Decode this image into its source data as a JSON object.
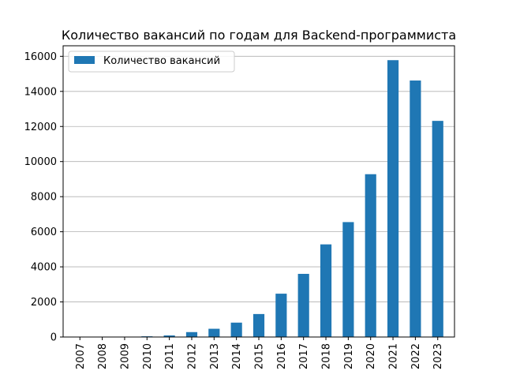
{
  "chart_data": {
    "type": "bar",
    "title": "Количество вакансий по годам для Backend-программиста",
    "xlabel": "",
    "ylabel": "",
    "categories": [
      "2007",
      "2008",
      "2009",
      "2010",
      "2011",
      "2012",
      "2013",
      "2014",
      "2015",
      "2016",
      "2017",
      "2018",
      "2019",
      "2020",
      "2021",
      "2022",
      "2023"
    ],
    "series": [
      {
        "name": "Количество вакансий",
        "values": [
          5,
          10,
          15,
          40,
          90,
          280,
          470,
          820,
          1310,
          2470,
          3600,
          5280,
          6550,
          9280,
          15780,
          14620,
          12320
        ]
      }
    ],
    "ylim": [
      0,
      16600
    ],
    "yticks": [
      0,
      2000,
      4000,
      6000,
      8000,
      10000,
      12000,
      14000,
      16000
    ],
    "ytick_labels": [
      "0",
      "2000",
      "4000",
      "6000",
      "8000",
      "10000",
      "12000",
      "14000",
      "16000"
    ],
    "grid": "horizontal",
    "legend_position": "top-left",
    "colors": {
      "bar": "#1f77b4",
      "grid": "#b0b0b0",
      "axes": "#000000"
    }
  }
}
